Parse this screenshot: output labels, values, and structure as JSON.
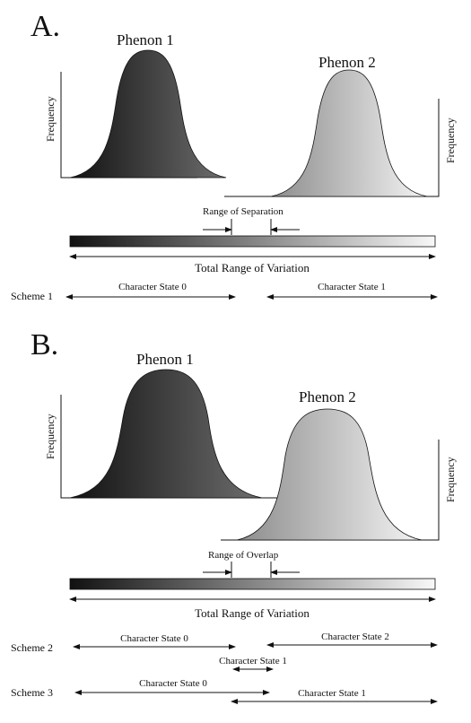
{
  "panels": [
    {
      "letter": "A.",
      "phenon1": "Phenon 1",
      "phenon2": "Phenon 2",
      "axis_left": "Frequency",
      "axis_right": "Frequency",
      "range_label": "Range of Separation",
      "total_label": "Total Range of Variation",
      "schemes": [
        {
          "label": "Scheme 1",
          "states": [
            "Character State 0",
            "Character State 1"
          ]
        }
      ]
    },
    {
      "letter": "B.",
      "phenon1": "Phenon 1",
      "phenon2": "Phenon 2",
      "axis_left": "Frequency",
      "axis_right": "Frequency",
      "range_label": "Range of Overlap",
      "total_label": "Total Range of Variation",
      "schemes": [
        {
          "label": "Scheme 2",
          "states": [
            "Character State 0",
            "Character State 1",
            "Character State 2"
          ]
        },
        {
          "label": "Scheme 3",
          "states": [
            "Character State 0",
            "Character State 1"
          ]
        }
      ]
    }
  ],
  "colors": {
    "dark": "#1a1a1a",
    "mid": "#7a7a7a",
    "light": "#f2f2f2",
    "line": "#111111"
  }
}
